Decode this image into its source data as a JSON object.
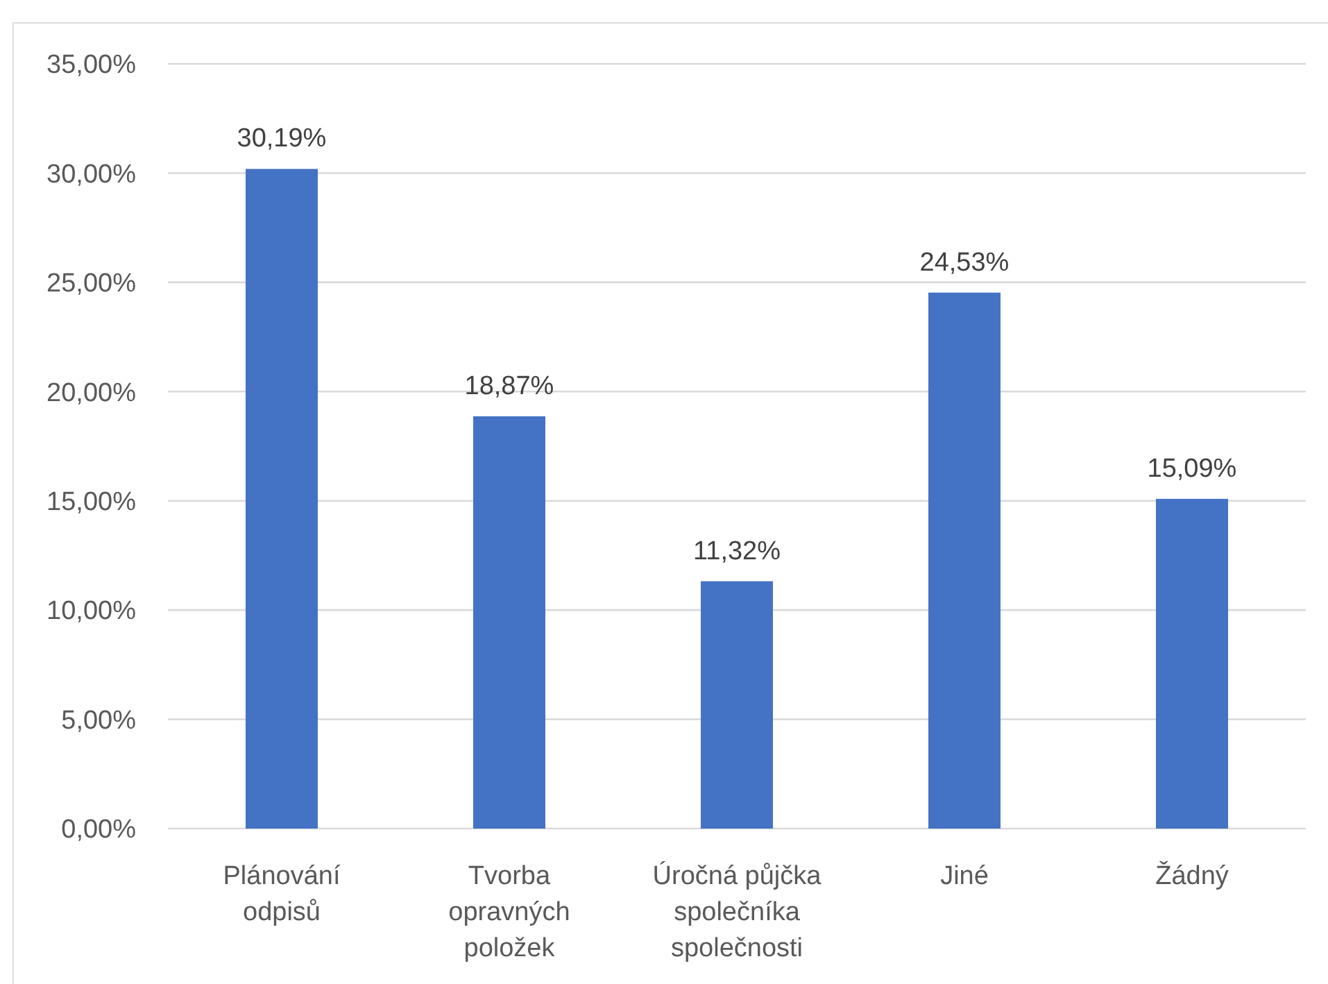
{
  "chart_data": {
    "type": "bar",
    "categories": [
      "Plánování odpisů",
      "Tvorba opravných položek",
      "Úročná půjčka společníka společnosti",
      "Jiné",
      "Žádný"
    ],
    "values": [
      30.19,
      18.87,
      11.32,
      24.53,
      15.09
    ],
    "color": "#4472c4",
    "value_labels": [
      "30,19%",
      "18,87%",
      "11,32%",
      "24,53%",
      "15,09%"
    ],
    "ylim": [
      0,
      35
    ],
    "yticks": [
      {
        "value": 0,
        "label": "0,00%"
      },
      {
        "value": 5,
        "label": "5,00%"
      },
      {
        "value": 10,
        "label": "10,00%"
      },
      {
        "value": 15,
        "label": "15,00%"
      },
      {
        "value": 20,
        "label": "20,00%"
      },
      {
        "value": 25,
        "label": "25,00%"
      },
      {
        "value": 30,
        "label": "30,00%"
      },
      {
        "value": 35,
        "label": "35,00%"
      }
    ],
    "grid": "y"
  }
}
